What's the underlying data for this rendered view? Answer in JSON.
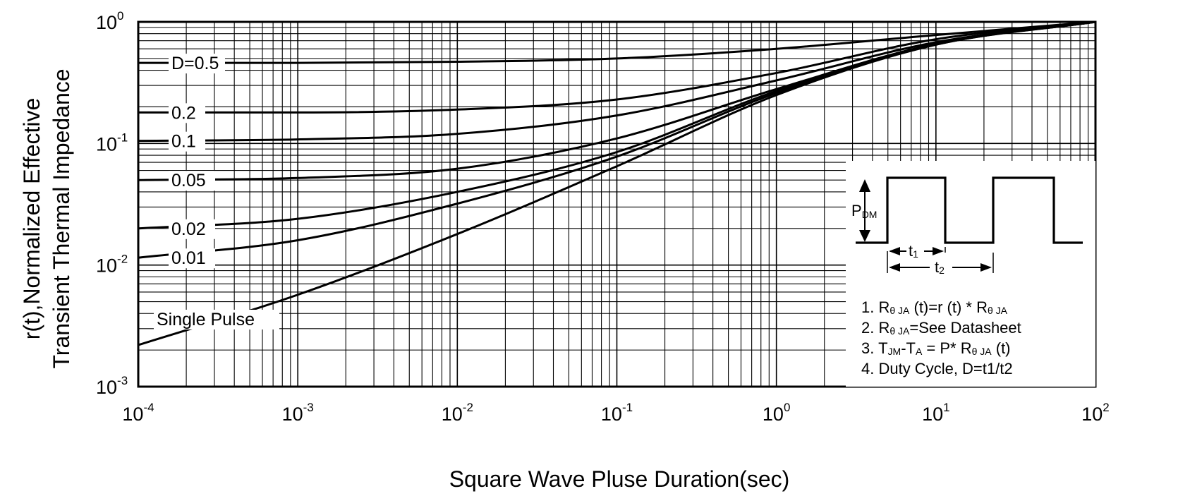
{
  "chart_data": {
    "type": "line",
    "title": "",
    "xlabel": "Square Wave Pluse Duration(sec)",
    "ylabel_lines": [
      "r(t),Normalized Effective",
      "Transient Thermal Impedance"
    ],
    "x_scale": "log",
    "y_scale": "log",
    "xlim": [
      0.0001,
      100
    ],
    "ylim": [
      0.001,
      1
    ],
    "grid": true,
    "x_ticks": [
      {
        "value": 0.0001,
        "base": "10",
        "exp": "-4"
      },
      {
        "value": 0.001,
        "base": "10",
        "exp": "-3"
      },
      {
        "value": 0.01,
        "base": "10",
        "exp": "-2"
      },
      {
        "value": 0.1,
        "base": "10",
        "exp": "-1"
      },
      {
        "value": 1,
        "base": "10",
        "exp": "0"
      },
      {
        "value": 10,
        "base": "10",
        "exp": "1"
      },
      {
        "value": 100,
        "base": "10",
        "exp": "2"
      }
    ],
    "y_ticks": [
      {
        "value": 0.001,
        "base": "10",
        "exp": "-3"
      },
      {
        "value": 0.01,
        "base": "10",
        "exp": "-2"
      },
      {
        "value": 0.1,
        "base": "10",
        "exp": "-1"
      },
      {
        "value": 1,
        "base": "10",
        "exp": "0"
      }
    ],
    "series": [
      {
        "name": "D=0.5",
        "x": [
          0.0001,
          0.001,
          0.01,
          0.1,
          1,
          10,
          100
        ],
        "y": [
          0.46,
          0.46,
          0.47,
          0.5,
          0.6,
          0.78,
          1.0
        ]
      },
      {
        "name": "0.2",
        "x": [
          0.0001,
          0.001,
          0.01,
          0.1,
          1,
          10,
          100
        ],
        "y": [
          0.18,
          0.18,
          0.19,
          0.23,
          0.38,
          0.72,
          1.0
        ]
      },
      {
        "name": "0.1",
        "x": [
          0.0001,
          0.001,
          0.01,
          0.1,
          1,
          10,
          100
        ],
        "y": [
          0.105,
          0.108,
          0.12,
          0.17,
          0.33,
          0.68,
          1.0
        ]
      },
      {
        "name": "0.05",
        "x": [
          0.0001,
          0.001,
          0.01,
          0.1,
          1,
          10,
          100
        ],
        "y": [
          0.05,
          0.052,
          0.062,
          0.11,
          0.28,
          0.66,
          1.0
        ]
      },
      {
        "name": "0.02",
        "x": [
          0.0001,
          0.001,
          0.01,
          0.1,
          1,
          10,
          100
        ],
        "y": [
          0.02,
          0.024,
          0.04,
          0.085,
          0.27,
          0.66,
          1.0
        ]
      },
      {
        "name": "0.01",
        "x": [
          0.0001,
          0.001,
          0.01,
          0.1,
          1,
          10,
          100
        ],
        "y": [
          0.0115,
          0.016,
          0.032,
          0.078,
          0.26,
          0.65,
          1.0
        ]
      },
      {
        "name": "Single Pulse",
        "x": [
          0.0001,
          0.001,
          0.01,
          0.1,
          1,
          10,
          100
        ],
        "y": [
          0.0022,
          0.0057,
          0.018,
          0.065,
          0.25,
          0.65,
          1.0
        ]
      }
    ],
    "curve_labels": [
      {
        "text": "D=0.5",
        "series": "D=0.5"
      },
      {
        "text": "0.2",
        "series": "0.2"
      },
      {
        "text": "0.1",
        "series": "0.1"
      },
      {
        "text": "0.05",
        "series": "0.05"
      },
      {
        "text": "0.02",
        "series": "0.02"
      },
      {
        "text": "0.01",
        "series": "0.01"
      },
      {
        "text": "Single Pulse",
        "series": "Single Pulse"
      }
    ],
    "inset": {
      "pdm_label": {
        "main": "P",
        "sub": "DM"
      },
      "t1_label": {
        "main": "t",
        "sub": "1"
      },
      "t2_label": {
        "main": "t",
        "sub": "2"
      },
      "notes": [
        [
          {
            "t": "1.  R"
          },
          {
            "t": "θ JA",
            "sub": true
          },
          {
            "t": " (t)=r (t) * R"
          },
          {
            "t": "θ JA",
            "sub": true
          }
        ],
        [
          {
            "t": "2.  R"
          },
          {
            "t": "θ JA",
            "sub": true
          },
          {
            "t": "=See Datasheet"
          }
        ],
        [
          {
            "t": "3.  T"
          },
          {
            "t": "JM",
            "sub": true
          },
          {
            "t": "-T"
          },
          {
            "t": "A",
            "sub": true
          },
          {
            "t": " = P* R"
          },
          {
            "t": "θ JA",
            "sub": true
          },
          {
            "t": " (t)"
          }
        ],
        [
          {
            "t": "4.  Duty Cycle, D=t1/t2"
          }
        ]
      ]
    }
  }
}
